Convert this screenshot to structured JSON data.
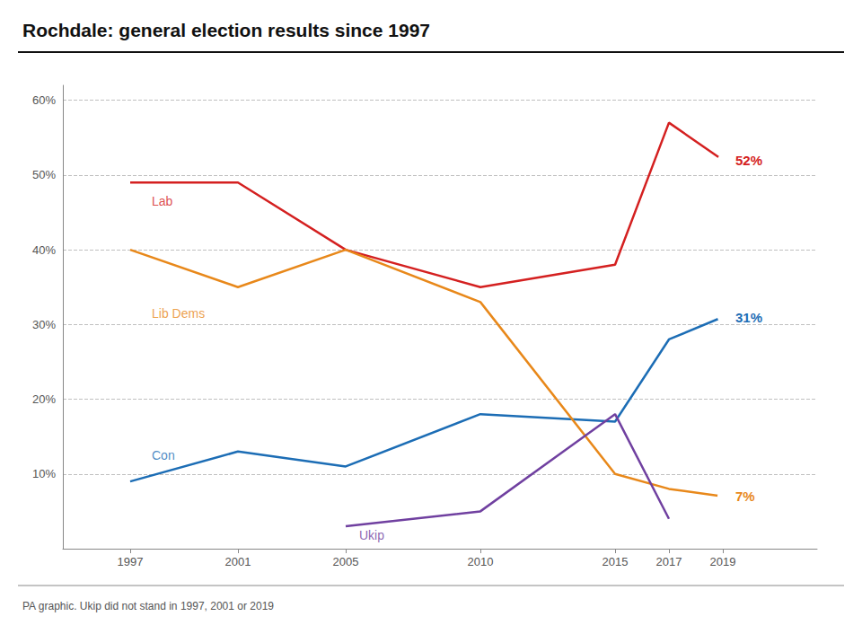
{
  "chart_data": {
    "type": "line",
    "title": "Rochdale: general election results since 1997",
    "footnote": "PA graphic. Ukip did not stand in 1997, 2001 or 2019",
    "series": [
      {
        "name": "Lab",
        "color": "#d42020",
        "x": [
          1997,
          2001,
          2005,
          2010,
          2015,
          2017,
          2019
        ],
        "values": [
          49,
          49,
          40,
          35,
          38,
          57,
          52
        ],
        "value_labels": [
          null,
          null,
          null,
          null,
          null,
          null,
          "52%"
        ]
      },
      {
        "name": "Con",
        "color": "#1c6db5",
        "x": [
          1997,
          2001,
          2005,
          2010,
          2015,
          2017,
          2019
        ],
        "values": [
          9,
          13,
          11,
          18,
          17,
          28,
          31
        ],
        "value_labels": [
          null,
          null,
          null,
          null,
          null,
          null,
          "31%"
        ]
      },
      {
        "name": "Lib Dems",
        "color": "#e8881a",
        "x": [
          1997,
          2001,
          2005,
          2010,
          2015,
          2017,
          2019
        ],
        "values": [
          40,
          35,
          40,
          33,
          10,
          8,
          7
        ],
        "value_labels": [
          null,
          null,
          null,
          null,
          null,
          null,
          "7%"
        ]
      },
      {
        "name": "Ukip",
        "color": "#7040a0",
        "x": [
          2005,
          2010,
          2015,
          2017
        ],
        "values": [
          3,
          5,
          18,
          4
        ]
      }
    ],
    "annotations": [
      {
        "text": "Lab",
        "x": 1997.8,
        "y": 46.5,
        "color": "#d42020"
      },
      {
        "text": "Lib Dems",
        "x": 1997.8,
        "y": 31.5,
        "color": "#e8881a"
      },
      {
        "text": "Con",
        "x": 1997.8,
        "y": 12.5,
        "color": "#1c6db5"
      },
      {
        "text": "Ukip",
        "x": 2005.5,
        "y": 1.8,
        "color": "#7040a0"
      }
    ],
    "xlim": [
      1994.5,
      2022.5
    ],
    "xticks": [
      1997,
      2001,
      2005,
      2010,
      2015,
      2017,
      2019
    ],
    "ylim": [
      0,
      62
    ],
    "yticks": [
      {
        "value": 10,
        "label": "10%"
      },
      {
        "value": 20,
        "label": "20%"
      },
      {
        "value": 30,
        "label": "30%"
      },
      {
        "value": 40,
        "label": "40%"
      },
      {
        "value": 50,
        "label": "50%"
      },
      {
        "value": 60,
        "label": "60%"
      }
    ],
    "grid": true
  }
}
